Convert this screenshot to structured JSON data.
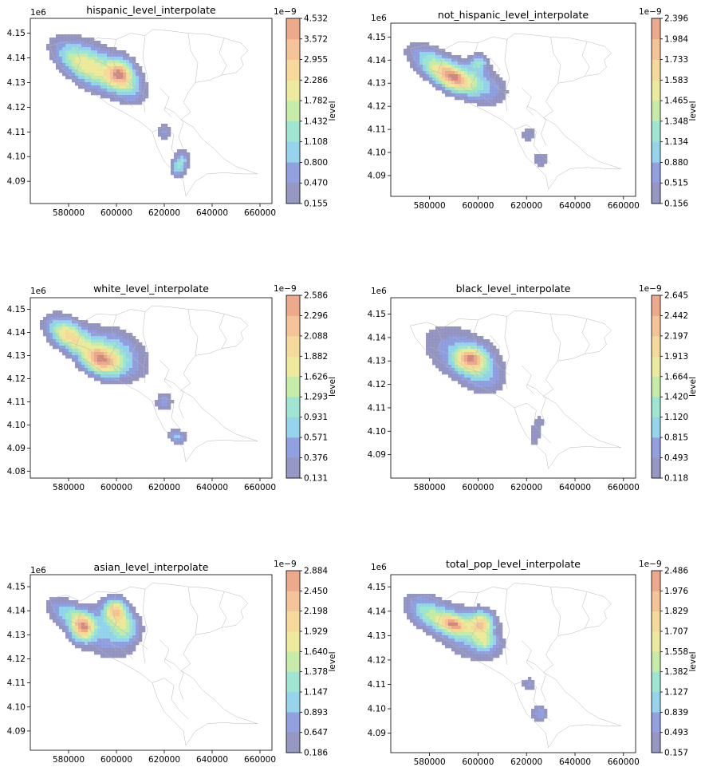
{
  "chart_data": [
    {
      "type": "heatmap",
      "title": "hispanic_level_interpolate",
      "x_ticks": [
        "580000",
        "600000",
        "620000",
        "640000",
        "660000"
      ],
      "y_ticks": [
        "4.09",
        "4.10",
        "4.11",
        "4.12",
        "4.13",
        "4.14",
        "4.15"
      ],
      "y_offset": "1e6",
      "xlim": [
        564000,
        665000
      ],
      "ylim": [
        4081000,
        4156000
      ],
      "colorbar": {
        "label": "level",
        "offset": "1e−9",
        "levels": [
          "0.155",
          "0.470",
          "0.800",
          "1.108",
          "1.432",
          "1.782",
          "2.286",
          "2.955",
          "3.572",
          "4.532"
        ]
      },
      "blobs": [
        {
          "x": 583000,
          "y": 4139000,
          "sx": 8000,
          "sy": 4000,
          "rot": -35,
          "w": 0.55
        },
        {
          "x": 592000,
          "y": 4136000,
          "sx": 9000,
          "sy": 5500,
          "rot": -35,
          "w": 0.7
        },
        {
          "x": 601500,
          "y": 4134000,
          "sx": 4000,
          "sy": 4000,
          "rot": 0,
          "w": 1.0
        },
        {
          "x": 606000,
          "y": 4128000,
          "sx": 5000,
          "sy": 4000,
          "rot": -40,
          "w": 0.45
        },
        {
          "x": 620000,
          "y": 4110000,
          "sx": 1800,
          "sy": 2800,
          "rot": 0,
          "w": 0.35
        },
        {
          "x": 626500,
          "y": 4097000,
          "sx": 2200,
          "sy": 3500,
          "rot": -20,
          "w": 0.7
        }
      ]
    },
    {
      "type": "heatmap",
      "title": "not_hispanic_level_interpolate",
      "x_ticks": [
        "580000",
        "600000",
        "620000",
        "640000",
        "660000"
      ],
      "y_ticks": [
        "4.09",
        "4.10",
        "4.11",
        "4.12",
        "4.13",
        "4.14",
        "4.15"
      ],
      "y_offset": "1e6",
      "xlim": [
        564000,
        665000
      ],
      "ylim": [
        4081000,
        4156000
      ],
      "colorbar": {
        "label": "level",
        "offset": "1e−9",
        "levels": [
          "0.156",
          "0.515",
          "0.880",
          "1.134",
          "1.348",
          "1.465",
          "1.583",
          "1.733",
          "1.984",
          "2.396"
        ]
      },
      "blobs": [
        {
          "x": 582000,
          "y": 4138000,
          "sx": 8000,
          "sy": 4000,
          "rot": -35,
          "w": 0.75
        },
        {
          "x": 590000,
          "y": 4132000,
          "sx": 5500,
          "sy": 3500,
          "rot": -30,
          "w": 1.0
        },
        {
          "x": 600000,
          "y": 4130000,
          "sx": 8000,
          "sy": 5000,
          "rot": -30,
          "w": 0.6
        },
        {
          "x": 600500,
          "y": 4139000,
          "sx": 2500,
          "sy": 2500,
          "rot": 0,
          "w": 0.55
        },
        {
          "x": 621000,
          "y": 4108000,
          "sx": 2500,
          "sy": 2500,
          "rot": 0,
          "w": 0.3
        },
        {
          "x": 626000,
          "y": 4097000,
          "sx": 2500,
          "sy": 2500,
          "rot": 0,
          "w": 0.3
        }
      ]
    },
    {
      "type": "heatmap",
      "title": "white_level_interpolate",
      "x_ticks": [
        "580000",
        "600000",
        "620000",
        "640000",
        "660000"
      ],
      "y_ticks": [
        "4.08",
        "4.09",
        "4.10",
        "4.11",
        "4.12",
        "4.13",
        "4.14",
        "4.15"
      ],
      "y_offset": "1e6",
      "xlim": [
        564000,
        665000
      ],
      "ylim": [
        4077000,
        4155000
      ],
      "colorbar": {
        "label": "level",
        "offset": "1e−9",
        "levels": [
          "0.131",
          "0.376",
          "0.571",
          "0.931",
          "1.293",
          "1.626",
          "1.882",
          "2.088",
          "2.296",
          "2.586"
        ]
      },
      "blobs": [
        {
          "x": 580000,
          "y": 4139000,
          "sx": 6500,
          "sy": 4000,
          "rot": -35,
          "w": 0.95
        },
        {
          "x": 593000,
          "y": 4128000,
          "sx": 6000,
          "sy": 4000,
          "rot": -30,
          "w": 1.0
        },
        {
          "x": 600000,
          "y": 4131000,
          "sx": 9000,
          "sy": 6000,
          "rot": -35,
          "w": 0.55
        },
        {
          "x": 620000,
          "y": 4110000,
          "sx": 2500,
          "sy": 2800,
          "rot": 0,
          "w": 0.35
        },
        {
          "x": 625500,
          "y": 4095000,
          "sx": 2800,
          "sy": 2000,
          "rot": -20,
          "w": 0.45
        }
      ]
    },
    {
      "type": "heatmap",
      "title": "black_level_interpolate",
      "x_ticks": [
        "580000",
        "600000",
        "620000",
        "640000",
        "660000"
      ],
      "y_ticks": [
        "4.09",
        "4.10",
        "4.11",
        "4.12",
        "4.13",
        "4.14",
        "4.15"
      ],
      "y_offset": "1e6",
      "xlim": [
        564000,
        665000
      ],
      "ylim": [
        4080000,
        4157000
      ],
      "colorbar": {
        "label": "level",
        "offset": "1e−9",
        "levels": [
          "0.118",
          "0.493",
          "0.815",
          "1.120",
          "1.420",
          "1.664",
          "1.913",
          "2.197",
          "2.442",
          "2.645"
        ]
      },
      "blobs": [
        {
          "x": 597000,
          "y": 4131000,
          "sx": 4500,
          "sy": 3500,
          "rot": 0,
          "w": 1.0
        },
        {
          "x": 593000,
          "y": 4133000,
          "sx": 11000,
          "sy": 7000,
          "rot": -30,
          "w": 0.45
        },
        {
          "x": 602000,
          "y": 4124000,
          "sx": 6000,
          "sy": 5000,
          "rot": -30,
          "w": 0.35
        },
        {
          "x": 624000,
          "y": 4100000,
          "sx": 2000,
          "sy": 6500,
          "rot": -15,
          "w": 0.25
        }
      ]
    },
    {
      "type": "heatmap",
      "title": "asian_level_interpolate",
      "x_ticks": [
        "580000",
        "600000",
        "620000",
        "640000",
        "660000"
      ],
      "y_ticks": [
        "4.09",
        "4.10",
        "4.11",
        "4.12",
        "4.13",
        "4.14",
        "4.15"
      ],
      "y_offset": "1e6",
      "xlim": [
        564000,
        665000
      ],
      "ylim": [
        4082000,
        4155000
      ],
      "colorbar": {
        "label": "level",
        "offset": "1e−9",
        "levels": [
          "0.186",
          "0.647",
          "0.893",
          "1.147",
          "1.378",
          "1.640",
          "1.929",
          "2.198",
          "2.450",
          "2.884"
        ]
      },
      "blobs": [
        {
          "x": 586000,
          "y": 4133000,
          "sx": 3500,
          "sy": 4000,
          "rot": 0,
          "w": 1.0
        },
        {
          "x": 599500,
          "y": 4140000,
          "sx": 3500,
          "sy": 3500,
          "rot": 0,
          "w": 1.0
        },
        {
          "x": 579000,
          "y": 4139000,
          "sx": 6000,
          "sy": 3500,
          "rot": -30,
          "w": 0.45
        },
        {
          "x": 604000,
          "y": 4133000,
          "sx": 4000,
          "sy": 4000,
          "rot": 0,
          "w": 0.6
        },
        {
          "x": 595000,
          "y": 4130000,
          "sx": 9000,
          "sy": 6000,
          "rot": -35,
          "w": 0.35
        }
      ]
    },
    {
      "type": "heatmap",
      "title": "total_pop_level_interpolate",
      "x_ticks": [
        "580000",
        "600000",
        "620000",
        "640000",
        "660000"
      ],
      "y_ticks": [
        "4.09",
        "4.10",
        "4.11",
        "4.12",
        "4.13",
        "4.14",
        "4.15"
      ],
      "y_offset": "1e6",
      "xlim": [
        564000,
        665000
      ],
      "ylim": [
        4082000,
        4155000
      ],
      "colorbar": {
        "label": "level",
        "offset": "1e−9",
        "levels": [
          "0.157",
          "0.493",
          "0.839",
          "1.127",
          "1.382",
          "1.558",
          "1.707",
          "1.829",
          "1.976",
          "2.486"
        ]
      },
      "blobs": [
        {
          "x": 580000,
          "y": 4139000,
          "sx": 7000,
          "sy": 4000,
          "rot": -30,
          "w": 0.7
        },
        {
          "x": 590000,
          "y": 4134500,
          "sx": 4000,
          "sy": 2500,
          "rot": -20,
          "w": 0.95
        },
        {
          "x": 601500,
          "y": 4135000,
          "sx": 3500,
          "sy": 3500,
          "rot": 0,
          "w": 1.0
        },
        {
          "x": 596000,
          "y": 4131000,
          "sx": 10000,
          "sy": 6000,
          "rot": -30,
          "w": 0.55
        },
        {
          "x": 603000,
          "y": 4127000,
          "sx": 3000,
          "sy": 2500,
          "rot": 0,
          "w": 0.5
        },
        {
          "x": 621000,
          "y": 4110000,
          "sx": 2200,
          "sy": 2000,
          "rot": 0,
          "w": 0.35
        },
        {
          "x": 625500,
          "y": 4098000,
          "sx": 2500,
          "sy": 2200,
          "rot": 0,
          "w": 0.45
        }
      ]
    }
  ],
  "colors": {
    "levels": [
      "#8585b8",
      "#7f8fdb",
      "#83cde8",
      "#8ee2ca",
      "#bde79a",
      "#e7e68c",
      "#f3d48a",
      "#f2b886",
      "#ea9a78",
      "#c9766a"
    ],
    "outline": "#b8b8b8"
  }
}
